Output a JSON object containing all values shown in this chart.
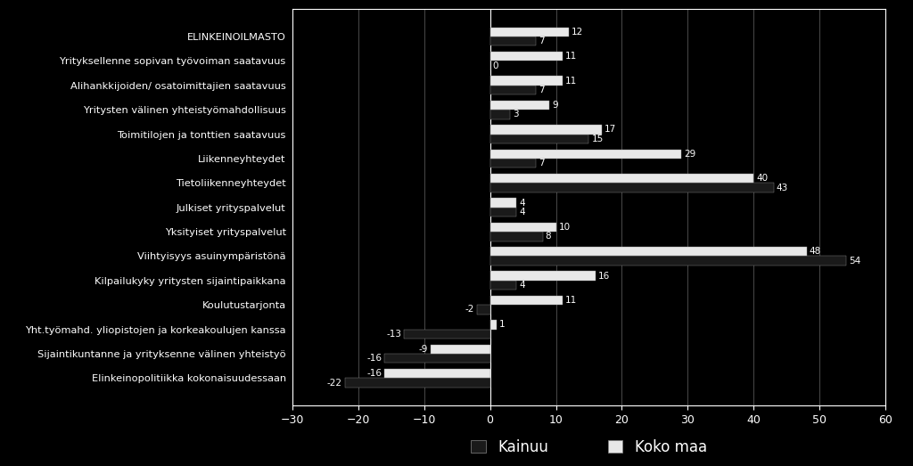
{
  "categories": [
    "ELINKEINOILMASTO",
    "Yrityksellenne sopivan työvoiman saatavuus",
    "Alihankkijoiden/ osatoimittajien saatavuus",
    "Yritysten välinen yhteistyömahdollisuus",
    "Toimitilojen ja tonttien saatavuus",
    "Liikenneyhteydet",
    "Tietoliikenneyhteydet",
    "Julkiset yrityspalvelut",
    "Yksityiset yrityspalvelut",
    "Viihtyisyys asuinYmpäristönä",
    "Kilpailukyky yritysten sijaintipaikkana",
    "Koulutustarjonta",
    "Yht.työmahd. yliopistojen ja korkeakoulujen kanssa",
    "Sijaintikuntanne ja yrityksenne välinen yhteistyö",
    "Elinkeinopolitiikka kokonaisuudessaan"
  ],
  "kainuu": [
    7,
    0,
    7,
    3,
    15,
    7,
    43,
    4,
    8,
    54,
    4,
    -2,
    -13,
    -16,
    -22
  ],
  "koko_maa": [
    12,
    11,
    11,
    9,
    17,
    29,
    40,
    4,
    10,
    48,
    16,
    11,
    1,
    -9,
    -16
  ],
  "kainuu_color": "#1a1a1a",
  "koko_maa_color": "#e8e8e8",
  "background_color": "#000000",
  "text_color": "#ffffff",
  "xlim": [
    -30,
    60
  ],
  "xticks": [
    -30,
    -20,
    -10,
    0,
    10,
    20,
    30,
    40,
    50,
    60
  ],
  "bar_height": 0.38,
  "figsize": [
    10.24,
    5.23
  ],
  "dpi": 100
}
